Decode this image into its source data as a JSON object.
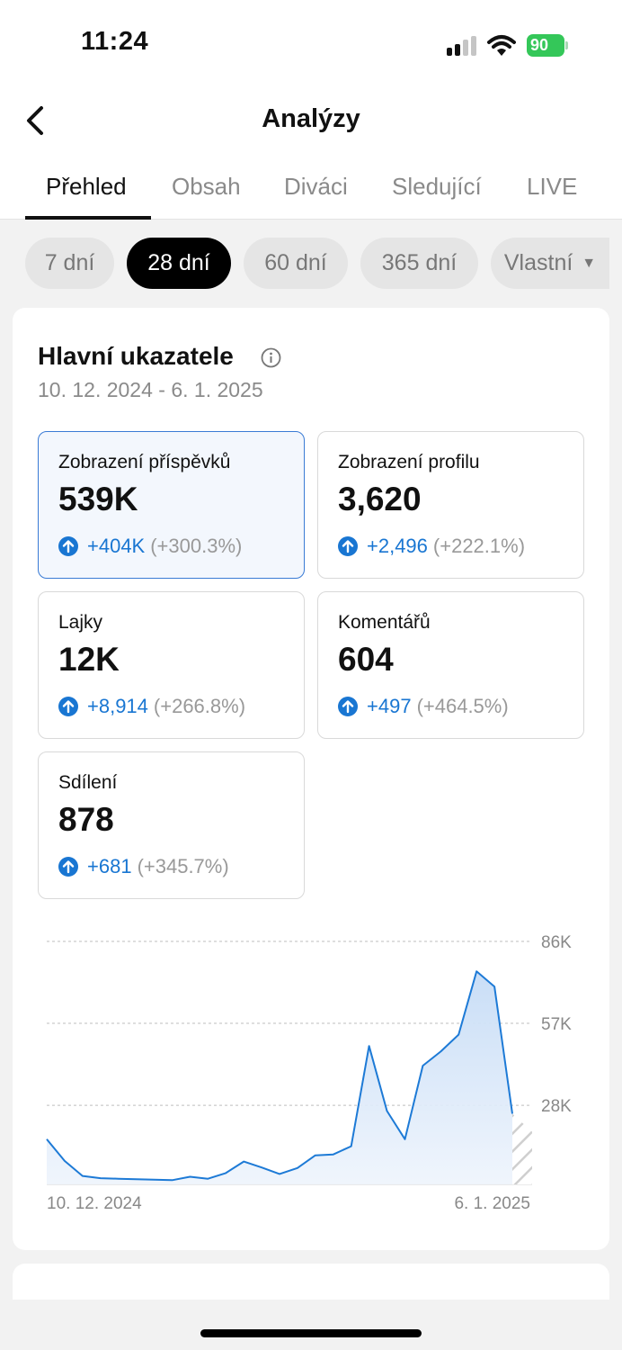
{
  "status_bar": {
    "time": "11:24",
    "battery": "90"
  },
  "header": {
    "title": "Analýzy"
  },
  "tabs": [
    {
      "label": "Přehled",
      "active": true
    },
    {
      "label": "Obsah",
      "active": false
    },
    {
      "label": "Diváci",
      "active": false
    },
    {
      "label": "Sledující",
      "active": false
    },
    {
      "label": "LIVE",
      "active": false
    }
  ],
  "date_filters": [
    {
      "label": "7 dní",
      "active": false
    },
    {
      "label": "28 dní",
      "active": true
    },
    {
      "label": "60 dní",
      "active": false
    },
    {
      "label": "365 dní",
      "active": false
    },
    {
      "label": "Vlastní",
      "active": false
    }
  ],
  "overview": {
    "title": "Hlavní ukazatele",
    "date_range": "10. 12. 2024 - 6. 1. 2025",
    "metrics": [
      {
        "label": "Zobrazení příspěvků",
        "value": "539K",
        "delta": "+404K",
        "delta_pct": "(+300.3%)",
        "selected": true
      },
      {
        "label": "Zobrazení profilu",
        "value": "3,620",
        "delta": "+2,496",
        "delta_pct": "(+222.1%)",
        "selected": false
      },
      {
        "label": "Lajky",
        "value": "12K",
        "delta": "+8,914",
        "delta_pct": "(+266.8%)",
        "selected": false
      },
      {
        "label": "Komentářů",
        "value": "604",
        "delta": "+497",
        "delta_pct": "(+464.5%)",
        "selected": false
      },
      {
        "label": "Sdílení",
        "value": "878",
        "delta": "+681",
        "delta_pct": "(+345.7%)",
        "selected": false
      }
    ]
  },
  "chart_data": {
    "type": "area",
    "x_start_label": "10. 12. 2024",
    "x_end_label": "6. 1. 2025",
    "y_ticks": [
      "28K",
      "57K",
      "86K"
    ],
    "y_tick_values": [
      28000,
      57000,
      86000
    ],
    "ylim": [
      0,
      86000
    ],
    "values": [
      16000,
      8300,
      3000,
      2200,
      2000,
      1800,
      1700,
      1500,
      2700,
      2000,
      4000,
      8100,
      6000,
      3700,
      5800,
      10300,
      10600,
      13500,
      49000,
      26000,
      16000,
      42000,
      47000,
      53000,
      75400,
      70000,
      25000
    ],
    "line_color": "#1d7ad6",
    "fill_color": "#cfe2f8"
  },
  "colors": {
    "accent": "#1976d2",
    "battery": "#34c759"
  }
}
